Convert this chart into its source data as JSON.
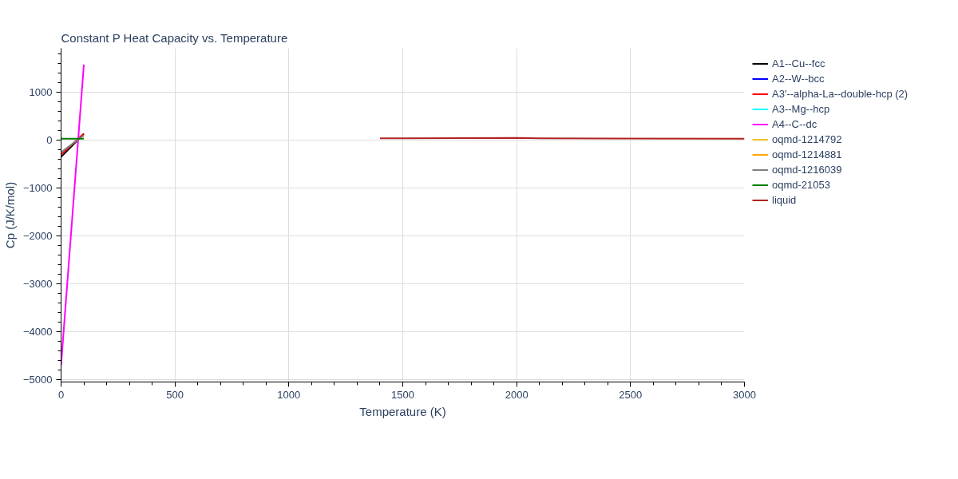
{
  "chart_data": {
    "type": "line",
    "title": "Constant P Heat Capacity vs. Temperature",
    "xlabel": "Temperature (K)",
    "ylabel": "Cp (J/K/mol)",
    "xlim": [
      0,
      3000
    ],
    "xticks": [
      0,
      500,
      1000,
      1500,
      2000,
      2500,
      3000
    ],
    "ylim": [
      -5050,
      1920
    ],
    "yticks": [
      -5000,
      -4000,
      -3000,
      -2000,
      -1000,
      0,
      1000
    ],
    "grid": true,
    "legend": "right",
    "series": [
      {
        "name": "A1--Cu--fcc",
        "color": "#000000",
        "x": [
          0,
          100
        ],
        "values": [
          -350,
          130
        ]
      },
      {
        "name": "A2--W--bcc",
        "color": "#0000ff"
      },
      {
        "name": "A3'--alpha-La--double-hcp (2)",
        "color": "#ff0000",
        "x": [
          0,
          100
        ],
        "values": [
          -300,
          140
        ]
      },
      {
        "name": "A3--Mg--hcp",
        "color": "#00ffff"
      },
      {
        "name": "A4--C--dc",
        "color": "#ff00ff",
        "x": [
          0,
          100
        ],
        "values": [
          -4700,
          1580
        ]
      },
      {
        "name": "oqmd-1214792",
        "color": "#f0c020"
      },
      {
        "name": "oqmd-1214881",
        "color": "#ffa500"
      },
      {
        "name": "oqmd-1216039",
        "color": "#808080",
        "x": [
          0,
          100
        ],
        "values": [
          -250,
          100
        ]
      },
      {
        "name": "oqmd-21053",
        "color": "#008000",
        "x": [
          0,
          100
        ],
        "values": [
          30,
          30
        ]
      },
      {
        "name": "liquid",
        "color": "#b22222",
        "x": [
          1400,
          2000,
          2100,
          3000
        ],
        "values": [
          40,
          50,
          40,
          30
        ]
      }
    ]
  }
}
